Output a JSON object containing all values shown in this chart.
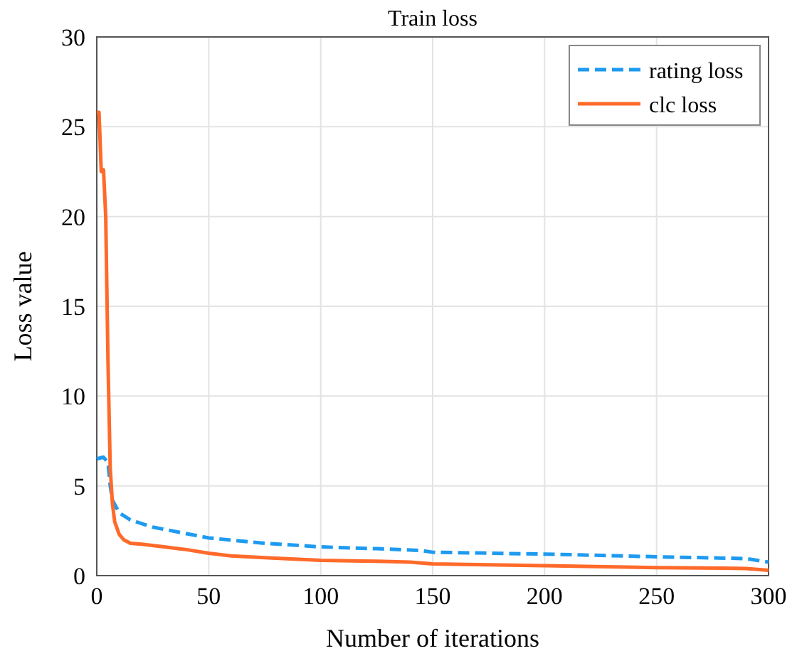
{
  "chart_data": {
    "type": "line",
    "title": "Train loss",
    "xlabel": "Number of iterations",
    "ylabel": "Loss value",
    "xlim": [
      0,
      300
    ],
    "xticks": [
      0,
      50,
      100,
      150,
      200,
      250,
      300
    ],
    "ylim": [
      0,
      30
    ],
    "yticks": [
      0,
      5,
      10,
      15,
      20,
      25,
      30
    ],
    "grid": true,
    "legend": "top right",
    "series": [
      {
        "name": "rating loss",
        "color": "#1e9bf0",
        "line_style": "dashed",
        "x": [
          0,
          3,
          5,
          6,
          7,
          10,
          15,
          25,
          50,
          75,
          100,
          125,
          145,
          150,
          200,
          250,
          290,
          300
        ],
        "values": [
          6.5,
          6.6,
          6.3,
          5,
          4.2,
          3.5,
          3.1,
          2.7,
          2.1,
          1.8,
          1.6,
          1.5,
          1.4,
          1.3,
          1.2,
          1.05,
          0.95,
          0.75
        ]
      },
      {
        "name": "clc loss",
        "color": "#ff6a2a",
        "line_style": "solid",
        "x": [
          0,
          1,
          2,
          3,
          4,
          5,
          6,
          7,
          8,
          10,
          12,
          15,
          20,
          30,
          40,
          50,
          60,
          75,
          100,
          125,
          140,
          150,
          200,
          250,
          290,
          300
        ],
        "values": [
          25.8,
          25.8,
          22.5,
          22.6,
          20,
          12,
          6,
          4,
          3,
          2.3,
          2,
          1.8,
          1.75,
          1.6,
          1.45,
          1.25,
          1.1,
          1,
          0.85,
          0.8,
          0.75,
          0.65,
          0.55,
          0.45,
          0.4,
          0.3
        ]
      }
    ]
  }
}
